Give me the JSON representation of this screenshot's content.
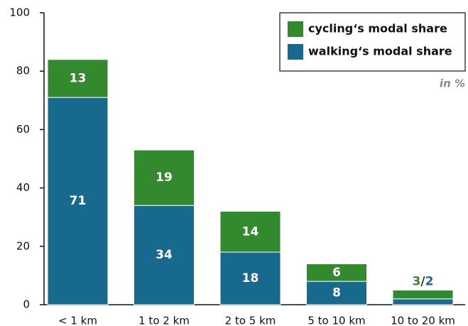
{
  "chart_data": {
    "type": "stacked_bar",
    "categories": [
      "< 1 km",
      "1 to 2 km",
      "2 to 5 km",
      "5 to 10 km",
      "10 to 20 km"
    ],
    "series": [
      {
        "name": "walking‘s modal share",
        "color": "#17698d",
        "values": [
          71,
          34,
          18,
          8,
          2
        ]
      },
      {
        "name": "cycling‘s modal share",
        "color": "#338a2e",
        "values": [
          13,
          19,
          14,
          6,
          3
        ]
      }
    ],
    "ylim": [
      0,
      100
    ],
    "yticks": [
      0,
      20,
      40,
      60,
      80,
      100
    ],
    "annotation": "in %",
    "label_separator": "/",
    "legend": "top-right",
    "grid": false
  }
}
